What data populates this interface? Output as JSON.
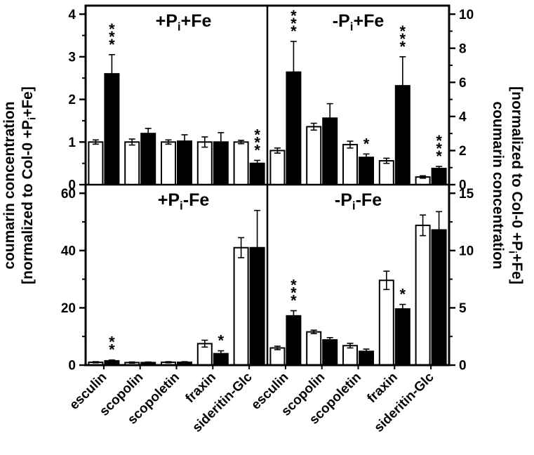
{
  "figure": {
    "background": "#ffffff",
    "axis_color": "#000000",
    "open_bar_fill": "#ffffff",
    "filled_bar_fill": "#000000",
    "left_axis_label_lines": [
      "coumarin concentration",
      "[normalized to Col-0 +P_i+Fe]"
    ],
    "right_axis_label_lines": [
      "coumarin concentration",
      "[normalized to Col-0 +P_i+Fe]"
    ]
  },
  "chart_data": [
    {
      "type": "bar",
      "position": "top-left",
      "title": "+P_i+Fe",
      "y_axis_side": "left",
      "axis_max": 4.2,
      "major_ticks": [
        0,
        1,
        2,
        3,
        4
      ],
      "minor_tick_step": 0.5,
      "show_x_labels": false,
      "categories": [
        "esculin",
        "scopolin",
        "scopoletin",
        "fraxin",
        "sideritin-Glc"
      ],
      "series": [
        {
          "name": "open (white)",
          "fill": "#ffffff",
          "values": [
            1.0,
            1.0,
            1.0,
            1.0,
            1.0
          ],
          "errors": [
            0.05,
            0.07,
            0.05,
            0.12,
            0.04
          ]
        },
        {
          "name": "filled (black)",
          "fill": "#000000",
          "values": [
            2.6,
            1.2,
            1.02,
            1.0,
            0.5
          ],
          "errors": [
            0.45,
            0.12,
            0.15,
            0.22,
            0.07
          ]
        }
      ],
      "significance": [
        {
          "category_index": 0,
          "series_index": 1,
          "label": "***"
        },
        {
          "category_index": 4,
          "series_index": 1,
          "label": "***"
        }
      ]
    },
    {
      "type": "bar",
      "position": "top-right",
      "title": "-P_i+Fe",
      "y_axis_side": "right",
      "axis_max": 10.5,
      "major_ticks": [
        0,
        2,
        4,
        6,
        8,
        10
      ],
      "minor_tick_step": 1,
      "show_x_labels": false,
      "categories": [
        "esculin",
        "scopolin",
        "scopoletin",
        "fraxin",
        "sideritin-Glc"
      ],
      "series": [
        {
          "name": "open (white)",
          "fill": "#ffffff",
          "values": [
            2.0,
            3.4,
            2.35,
            1.4,
            0.45
          ],
          "errors": [
            0.15,
            0.2,
            0.2,
            0.15,
            0.07
          ]
        },
        {
          "name": "filled (black)",
          "fill": "#000000",
          "values": [
            6.6,
            3.9,
            1.6,
            5.8,
            0.95
          ],
          "errors": [
            1.8,
            0.85,
            0.2,
            1.7,
            0.12
          ]
        }
      ],
      "significance": [
        {
          "category_index": 0,
          "series_index": 1,
          "label": "***"
        },
        {
          "category_index": 2,
          "series_index": 1,
          "label": "*"
        },
        {
          "category_index": 3,
          "series_index": 1,
          "label": "***"
        },
        {
          "category_index": 4,
          "series_index": 1,
          "label": "***"
        }
      ]
    },
    {
      "type": "bar",
      "position": "bottom-left",
      "title": "+P_i-Fe",
      "y_axis_side": "left",
      "axis_max": 63,
      "major_ticks": [
        0,
        20,
        40,
        60
      ],
      "minor_tick_step": 10,
      "show_x_labels": true,
      "categories": [
        "esculin",
        "scopolin",
        "scopoletin",
        "fraxin",
        "sideritin-Glc"
      ],
      "series": [
        {
          "name": "open (white)",
          "fill": "#ffffff",
          "values": [
            1.0,
            0.9,
            1.0,
            7.5,
            41
          ],
          "errors": [
            0.2,
            0.2,
            0.2,
            1.2,
            3.5
          ]
        },
        {
          "name": "filled (black)",
          "fill": "#000000",
          "values": [
            1.5,
            0.9,
            1.0,
            4.0,
            41
          ],
          "errors": [
            0.3,
            0.2,
            0.2,
            1.0,
            13
          ]
        }
      ],
      "significance": [
        {
          "category_index": 0,
          "series_index": 1,
          "label": "**"
        },
        {
          "category_index": 3,
          "series_index": 1,
          "label": "*"
        }
      ]
    },
    {
      "type": "bar",
      "position": "bottom-right",
      "title": "-P_i-Fe",
      "y_axis_side": "right",
      "axis_max": 15.75,
      "major_ticks": [
        0,
        5,
        10,
        15
      ],
      "minor_tick_step": 2.5,
      "show_x_labels": true,
      "categories": [
        "esculin",
        "scopolin",
        "scopoletin",
        "fraxin",
        "sideritin-Glc"
      ],
      "series": [
        {
          "name": "open (white)",
          "fill": "#ffffff",
          "values": [
            1.5,
            2.9,
            1.7,
            7.4,
            12.2
          ],
          "errors": [
            0.15,
            0.15,
            0.2,
            0.8,
            0.9
          ]
        },
        {
          "name": "filled (black)",
          "fill": "#000000",
          "values": [
            4.3,
            2.2,
            1.2,
            4.9,
            11.8
          ],
          "errors": [
            0.45,
            0.2,
            0.2,
            0.4,
            1.6
          ]
        }
      ],
      "significance": [
        {
          "category_index": 0,
          "series_index": 1,
          "label": "***"
        },
        {
          "category_index": 3,
          "series_index": 1,
          "label": "*"
        }
      ]
    }
  ]
}
